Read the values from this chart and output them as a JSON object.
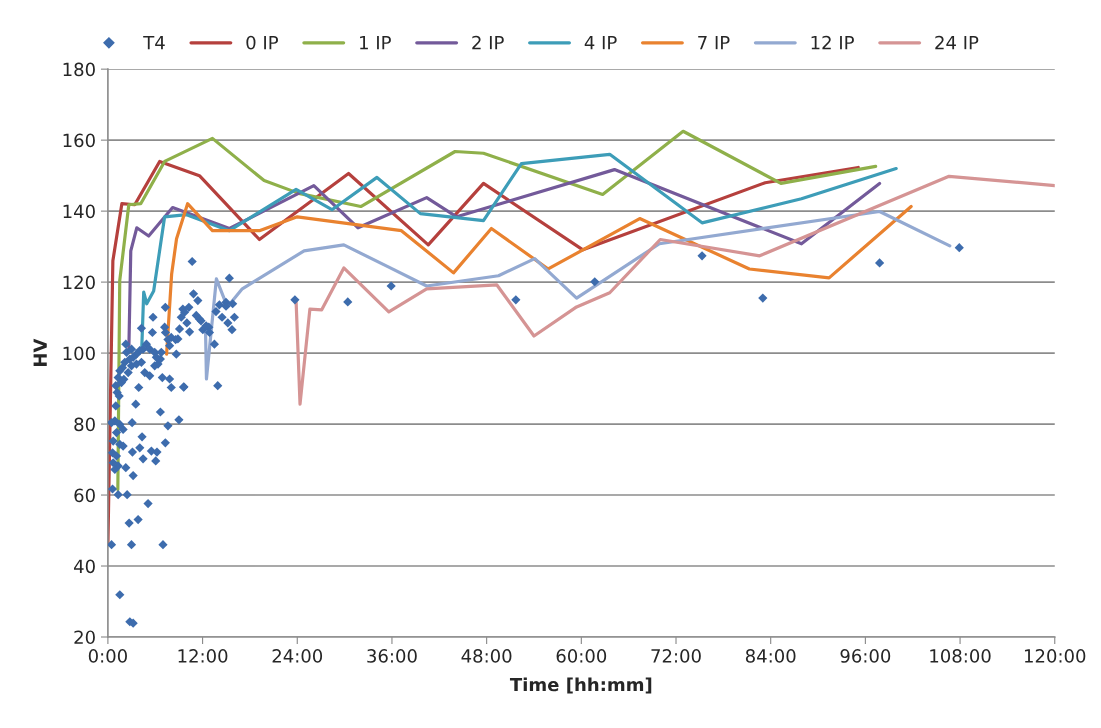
{
  "chart_data": {
    "type": "line",
    "xlabel": "Time [hh:mm]",
    "ylabel": "HV",
    "xlim": [
      0,
      120
    ],
    "ylim": [
      20,
      180
    ],
    "xticks": [
      {
        "value": 0,
        "label": "0:00"
      },
      {
        "value": 12,
        "label": "12:00"
      },
      {
        "value": 24,
        "label": "24:00"
      },
      {
        "value": 36,
        "label": "36:00"
      },
      {
        "value": 48,
        "label": "48:00"
      },
      {
        "value": 60,
        "label": "60:00"
      },
      {
        "value": 72,
        "label": "72:00"
      },
      {
        "value": 84,
        "label": "84:00"
      },
      {
        "value": 96,
        "label": "96:00"
      },
      {
        "value": 108,
        "label": "108:00"
      },
      {
        "value": 120,
        "label": "120:00"
      }
    ],
    "yticks": [
      20,
      40,
      60,
      80,
      100,
      120,
      140,
      160,
      180
    ],
    "grid": "y",
    "legend": "top",
    "series": [
      {
        "name": "T4",
        "type": "scatter",
        "marker": "diamond",
        "color": "#3d6cad",
        "x": [
          0.46,
          1.51,
          2.78,
          3.2,
          2.99,
          6.98,
          2.69,
          3.83,
          5.09,
          0.59,
          1.3,
          2.44,
          3.2,
          2.27,
          3.11,
          4.04,
          4.46,
          5.51,
          6.06,
          6.22,
          7.28,
          7.61,
          9.0,
          6.65,
          4.33,
          3.07,
          3.53,
          3.91,
          6.9,
          7.82,
          8.03,
          9.63,
          13.92,
          8.67,
          7.61,
          10.68,
          15.39,
          10.85,
          11.4,
          9.5,
          7.28,
          9.3,
          10.26,
          11.2,
          11.8,
          10.01,
          10.35,
          12.03,
          12.79,
          13.5,
          13.7,
          14.13,
          14.97,
          14.47,
          15.2,
          15.73,
          16.03,
          14.97,
          5.72,
          4.25,
          5.64,
          7.19,
          7.3,
          8.03,
          8.58,
          8.87,
          7.82,
          4.88,
          4.46,
          5.3,
          4.04,
          3.62,
          3.2,
          2.78,
          2.27,
          2.14,
          1.85,
          1.51,
          1.3,
          1.0,
          1.17,
          1.43,
          1.72,
          2.02,
          2.57,
          2.99,
          3.62,
          4.25,
          4.67,
          5.3,
          5.93,
          6.35,
          6.65,
          5.93,
          6.77,
          6.14,
          1.0,
          0.88,
          1.51,
          1.93,
          1.09,
          0.67,
          1.51,
          0.59,
          1.09,
          0.67,
          1.3,
          0.88,
          1.93,
          0.46,
          2.36,
          3.0,
          9.08,
          9.72,
          11.6,
          12.45,
          12.87,
          15.81,
          9.6,
          23.7,
          30.4,
          35.9,
          51.7,
          61.7,
          75.3,
          83.0,
          97.8,
          107.9
        ],
        "values": [
          46.0,
          31.9,
          24.3,
          23.9,
          46.0,
          46.0,
          52.1,
          53.1,
          57.6,
          61.7,
          60.1,
          60.1,
          65.5,
          67.7,
          72.1,
          73.3,
          70.2,
          72.4,
          69.6,
          72.1,
          74.7,
          79.5,
          81.2,
          83.4,
          76.4,
          80.4,
          85.6,
          90.3,
          93.1,
          92.7,
          90.3,
          90.5,
          90.8,
          99.7,
          103.8,
          125.8,
          121.1,
          116.7,
          114.8,
          112.4,
          112.9,
          110.1,
          112.9,
          110.6,
          109.1,
          108.5,
          106.0,
          106.6,
          107.3,
          102.5,
          111.7,
          113.6,
          114.3,
          110.1,
          108.5,
          106.6,
          110.1,
          113.2,
          110.1,
          107.0,
          105.8,
          107.3,
          105.8,
          104.4,
          103.8,
          104.0,
          102.1,
          102.5,
          101.1,
          101.1,
          100.7,
          99.7,
          98.8,
          98.3,
          102.5,
          97.4,
          95.9,
          95.0,
          93.1,
          90.8,
          88.9,
          87.9,
          91.7,
          92.6,
          94.5,
          96.4,
          96.9,
          97.4,
          94.5,
          93.6,
          96.4,
          96.9,
          98.3,
          100.2,
          100.2,
          98.8,
          85.1,
          80.9,
          79.9,
          78.5,
          77.6,
          75.2,
          74.3,
          71.9,
          71.0,
          69.1,
          68.2,
          67.2,
          73.8,
          80.4,
          100.2,
          101.1,
          106.8,
          111.5,
          109.6,
          107.7,
          105.8,
          113.9,
          90.4,
          115.0,
          114.4,
          118.9,
          115.0,
          120.1,
          127.4,
          115.5,
          125.4,
          129.7
        ]
      },
      {
        "name": "0 IP",
        "color": "#b5403d",
        "x": [
          0,
          0.63,
          1.77,
          3.4,
          6.56,
          11.6,
          19.2,
          30.5,
          40.6,
          47.6,
          60.2,
          83.3,
          95.1
        ],
        "values": [
          46.0,
          126,
          142.1,
          141.8,
          154,
          150,
          132,
          150.6,
          130.5,
          147.8,
          129.1,
          148,
          152.3
        ]
      },
      {
        "name": "1 IP",
        "color": "#8fb04a",
        "x": [
          1.26,
          1.5,
          2.65,
          4.16,
          7.19,
          13.25,
          19.8,
          24.2,
          32.05,
          44.0,
          47.6,
          62.7,
          72.9,
          85.3,
          97.3
        ],
        "values": [
          61.6,
          120.4,
          141.8,
          142.1,
          154,
          160.5,
          148.6,
          145,
          141.3,
          156.8,
          156.3,
          144.7,
          162.5,
          147.8,
          152.6
        ]
      },
      {
        "name": "2 IP",
        "color": "#735a9a",
        "x": [
          2.65,
          2.9,
          3.66,
          5.17,
          8.2,
          15.4,
          26.1,
          31.7,
          40.4,
          44.2,
          64.2,
          87.9,
          97.8
        ],
        "values": [
          100.3,
          128.8,
          135.3,
          133,
          141,
          135.1,
          147.2,
          135.3,
          143.8,
          138.4,
          151.7,
          130.8,
          147.8
        ]
      },
      {
        "name": "4 IP",
        "color": "#3d9db8",
        "x": [
          4.29,
          4.54,
          4.92,
          5.8,
          7.19,
          9.97,
          15.4,
          23.85,
          28.4,
          34.1,
          39.6,
          47.6,
          52.4,
          63.6,
          75.3,
          87.9,
          99.9
        ],
        "values": [
          101.1,
          117.2,
          113.9,
          117.5,
          138.4,
          139,
          134.5,
          146.1,
          140.4,
          149.5,
          139.3,
          137.3,
          153.4,
          156,
          136.7,
          143.5,
          152
        ]
      },
      {
        "name": "7 IP",
        "color": "#e9822f",
        "x": [
          7.44,
          8.08,
          8.7,
          10.1,
          13.25,
          19.2,
          24.0,
          37.2,
          43.8,
          48.6,
          55.8,
          67.4,
          81.3,
          91.4,
          101.8
        ],
        "values": [
          99.7,
          122.3,
          132.2,
          142.1,
          134.5,
          134.5,
          138.4,
          134.5,
          122.6,
          135.1,
          123.7,
          137.9,
          123.7,
          121.2,
          141.3
        ]
      },
      {
        "name": "12 IP",
        "color": "#93a9d1",
        "x": [
          12.37,
          12.49,
          13.75,
          15.14,
          17.03,
          24.86,
          29.9,
          35.6,
          40.4,
          49.5,
          54.1,
          59.4,
          69.9,
          97.8,
          106.7
        ],
        "values": [
          106.8,
          92.7,
          120.9,
          113,
          118.1,
          128.8,
          130.5,
          124.2,
          118.9,
          121.8,
          126.6,
          115.5,
          130.8,
          139.9,
          130.2
        ]
      },
      {
        "name": "24 IP",
        "color": "#d59494",
        "x": [
          23.85,
          24.35,
          25.6,
          27.1,
          29.9,
          35.6,
          40.4,
          49.3,
          54.0,
          59.4,
          63.6,
          70.0,
          82.6,
          106.6,
          120
        ],
        "values": [
          114.7,
          85.6,
          112.4,
          112.2,
          124,
          111.6,
          118.1,
          119.2,
          104.8,
          113,
          117,
          132,
          127.4,
          149.8,
          147.2
        ]
      }
    ]
  }
}
